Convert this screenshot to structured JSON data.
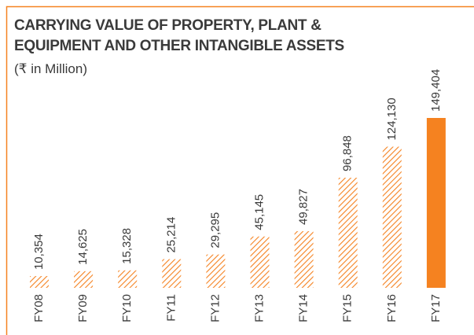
{
  "chart_data": {
    "type": "bar",
    "title": [
      "CARRYING VALUE OF PROPERTY, PLANT &",
      "EQUIPMENT AND OTHER INTANGIBLE ASSETS"
    ],
    "subtitle": "(₹ in Million)",
    "categories": [
      "FY08",
      "FY09",
      "FY10",
      "FY11",
      "FY12",
      "FY13",
      "FY14",
      "FY15",
      "FY16",
      "FY17"
    ],
    "values": [
      10354,
      14625,
      15328,
      25214,
      29295,
      45145,
      49827,
      96848,
      124130,
      149404
    ],
    "value_labels": [
      "10,354",
      "14,625",
      "15,328",
      "25,214",
      "29,295",
      "45,145",
      "49,827",
      "96,848",
      "124,130",
      "149,404"
    ],
    "color": "#f58220",
    "bar_styles": [
      "hatched",
      "hatched",
      "hatched",
      "hatched",
      "hatched",
      "hatched",
      "hatched",
      "hatched",
      "hatched",
      "solid"
    ]
  }
}
